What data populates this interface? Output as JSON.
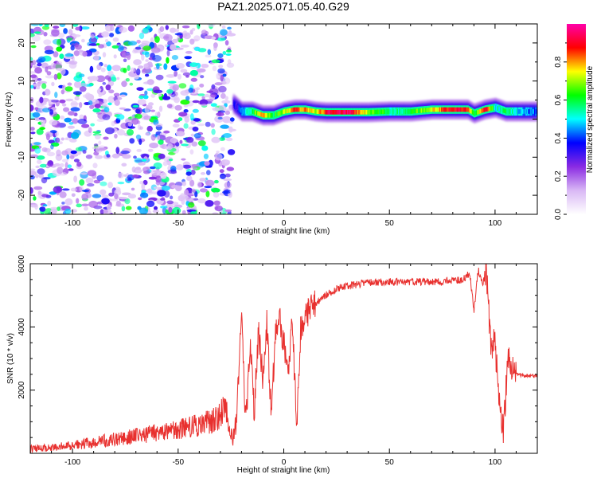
{
  "title": "PAZ1.2025.071.05.40.G29",
  "chart_data": [
    {
      "type": "heatmap",
      "xlabel": "Height of straight line (km)",
      "ylabel": "Frequency (Hz)",
      "xlim": [
        -120,
        120
      ],
      "ylim": [
        -25,
        25
      ],
      "x_ticks": [
        -100,
        -50,
        0,
        50,
        100
      ],
      "y_ticks": [
        -20,
        -10,
        0,
        10,
        20
      ],
      "colorbar": {
        "label": "Normalized spectral amplitude",
        "range": [
          0,
          1
        ],
        "ticks": [
          0.0,
          0.2,
          0.4,
          0.6,
          0.8
        ],
        "tick_labels": [
          "0.0",
          "0.2",
          "0.4",
          "0.6",
          "0.8"
        ],
        "colormap": [
          "#ffffff",
          "#d9b8f5",
          "#8a2be2",
          "#0000ff",
          "#00ffff",
          "#00ff00",
          "#ffff00",
          "#ff0000",
          "#ff00aa"
        ]
      },
      "noise_region": {
        "x_range": [
          -120,
          -24
        ],
        "freq_range": [
          -25,
          25
        ],
        "amplitude_range": [
          0.0,
          0.25
        ]
      },
      "carrier_track": [
        {
          "x": -24,
          "f": 4,
          "a": 0.3
        },
        {
          "x": -20,
          "f": 2,
          "a": 0.4
        },
        {
          "x": -15,
          "f": 2,
          "a": 0.6
        },
        {
          "x": -10,
          "f": 1,
          "a": 0.8
        },
        {
          "x": -5,
          "f": 1,
          "a": 0.6
        },
        {
          "x": 0,
          "f": 2,
          "a": 0.7
        },
        {
          "x": 5,
          "f": 2.5,
          "a": 0.85
        },
        {
          "x": 10,
          "f": 2.5,
          "a": 0.8
        },
        {
          "x": 15,
          "f": 2,
          "a": 0.7
        },
        {
          "x": 20,
          "f": 1.8,
          "a": 0.9
        },
        {
          "x": 30,
          "f": 1.8,
          "a": 0.95
        },
        {
          "x": 40,
          "f": 1.8,
          "a": 0.7
        },
        {
          "x": 50,
          "f": 2,
          "a": 0.55
        },
        {
          "x": 60,
          "f": 2,
          "a": 0.6
        },
        {
          "x": 70,
          "f": 2.5,
          "a": 0.75
        },
        {
          "x": 80,
          "f": 2.5,
          "a": 0.9
        },
        {
          "x": 87,
          "f": 2.5,
          "a": 0.85
        },
        {
          "x": 90,
          "f": 1.5,
          "a": 0.6
        },
        {
          "x": 95,
          "f": 2.5,
          "a": 0.95
        },
        {
          "x": 100,
          "f": 3,
          "a": 0.5
        },
        {
          "x": 105,
          "f": 2,
          "a": 0.6
        },
        {
          "x": 110,
          "f": 2,
          "a": 0.5
        },
        {
          "x": 120,
          "f": 2,
          "a": 0.4
        }
      ]
    },
    {
      "type": "line",
      "xlabel": "Height of straight line (km)",
      "ylabel": "SNR (10 * v/v)",
      "xlim": [
        -120,
        120
      ],
      "ylim": [
        0,
        6000
      ],
      "x_ticks": [
        -100,
        -50,
        0,
        50,
        100
      ],
      "y_ticks": [
        2000,
        4000,
        6000
      ],
      "color": "#e8302e",
      "series": [
        {
          "x": [
            -120,
            -110,
            -100,
            -90,
            -80,
            -70,
            -60,
            -50,
            -40,
            -35,
            -30,
            -27,
            -24,
            -22,
            -20,
            -18,
            -16,
            -14,
            -12,
            -10,
            -8,
            -6,
            -4,
            -2,
            0,
            2,
            4,
            6,
            8,
            10,
            12,
            15,
            20,
            25,
            30,
            35,
            40,
            50,
            60,
            70,
            80,
            85,
            88,
            90,
            92,
            94,
            96,
            98,
            100,
            102,
            104,
            106,
            108,
            110,
            115,
            120
          ],
          "y": [
            150,
            180,
            250,
            350,
            450,
            550,
            650,
            750,
            900,
            1000,
            1200,
            1400,
            300,
            1500,
            4700,
            800,
            3500,
            1300,
            3800,
            2500,
            4200,
            1200,
            3700,
            4200,
            3500,
            2200,
            4500,
            800,
            4000,
            4300,
            4500,
            4700,
            5000,
            5200,
            5300,
            5350,
            5400,
            5420,
            5420,
            5430,
            5450,
            5500,
            5700,
            4500,
            5800,
            5400,
            5700,
            3300,
            3500,
            1500,
            700,
            3000,
            2600,
            2500,
            2450,
            2450
          ]
        }
      ]
    }
  ]
}
